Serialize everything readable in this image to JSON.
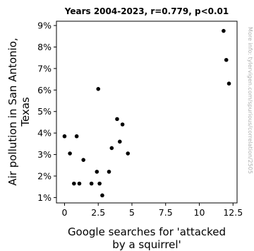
{
  "chart_data": {
    "type": "scatter",
    "title": "Years 2004-2023, r=0.779, p<0.01",
    "xlabel": [
      "Google searches for 'attacked",
      "by a squirrel'"
    ],
    "ylabel": [
      "Air pollution in San Antonio,",
      "Texas"
    ],
    "xlim": [
      -0.6,
      12.8
    ],
    "ylim": [
      0.75,
      9.2
    ],
    "x_ticks": [
      0,
      2.5,
      5,
      7.5,
      10,
      12.5
    ],
    "x_tick_labels": [
      "0",
      "2.5",
      "5",
      "7.5",
      "10",
      "12.5"
    ],
    "y_ticks": [
      1,
      2,
      3,
      4,
      5,
      6,
      7,
      8,
      9
    ],
    "y_tick_labels": [
      "1%",
      "2%",
      "3%",
      "4%",
      "5%",
      "6%",
      "7%",
      "8%",
      "9%"
    ],
    "grid": false,
    "point_color": "#000000",
    "x": [
      0.0,
      0.4,
      0.7,
      0.9,
      1.1,
      1.4,
      2.0,
      2.4,
      2.5,
      2.6,
      2.8,
      3.3,
      3.5,
      3.9,
      4.1,
      4.3,
      4.7,
      11.8,
      12.0,
      12.2
    ],
    "y": [
      3.85,
      3.05,
      1.65,
      3.85,
      1.65,
      2.75,
      1.65,
      2.2,
      6.05,
      1.65,
      1.1,
      2.2,
      3.3,
      4.65,
      3.6,
      4.4,
      3.05,
      8.75,
      7.4,
      6.3
    ]
  },
  "watermark": "More info: tylervigen.com/spurious/correlation/2505"
}
